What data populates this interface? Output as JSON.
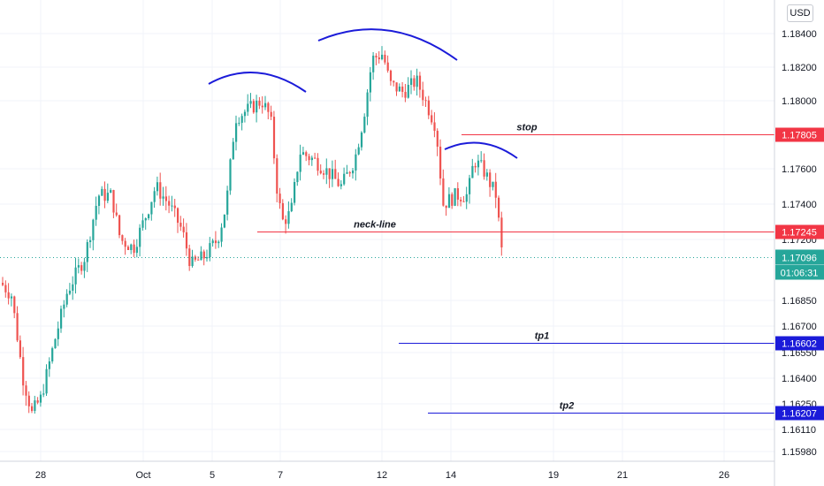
{
  "currency_button": "USD",
  "chart_data": {
    "type": "candlestick",
    "y_axis": {
      "ticks": [
        "1.18400",
        "1.18200",
        "1.18000",
        "1.17600",
        "1.17400",
        "1.17200",
        "1.16850",
        "1.16700",
        "1.16550",
        "1.16400",
        "1.16250",
        "1.16110",
        "1.15980"
      ]
    },
    "x_axis": {
      "ticks": [
        "28",
        "Oct",
        "5",
        "7",
        "12",
        "14",
        "19",
        "21",
        "26"
      ]
    },
    "price_levels": [
      {
        "name": "stop",
        "value": 1.17805,
        "label": "1.17805",
        "color": "#f23645",
        "annotation": "stop"
      },
      {
        "name": "neck-line",
        "value": 1.17245,
        "label": "1.17245",
        "color": "#f23645",
        "annotation": "neck-line"
      },
      {
        "name": "tp1",
        "value": 1.16602,
        "label": "1.16602",
        "color": "#1b1bd9",
        "annotation": "tp1"
      },
      {
        "name": "tp2",
        "value": 1.16207,
        "label": "1.16207",
        "color": "#1b1bd9",
        "annotation": "tp2"
      }
    ],
    "current_price": {
      "value": 1.17096,
      "label": "1.17096",
      "countdown": "01:06:31",
      "color": "#26a69a"
    },
    "series_colors": {
      "up": "#26a69a",
      "down": "#ef5350"
    },
    "pattern": "head-and-shoulders",
    "grid": true
  }
}
